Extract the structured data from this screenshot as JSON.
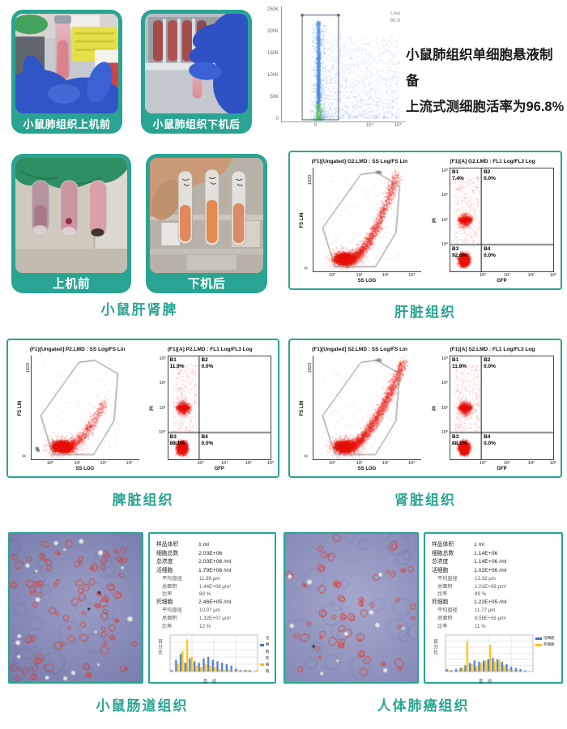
{
  "accent_color": "#2aa492",
  "headline": {
    "line1": "小鼠肺组织单细胞悬液制备",
    "line2": "上流式测细胞活率为96.8%"
  },
  "photos": {
    "lung_before": {
      "caption": "小鼠肺组织上机前"
    },
    "lung_after": {
      "caption": "小鼠肺组织下机后"
    },
    "organs_before": {
      "caption": "上机前"
    },
    "organs_after": {
      "caption": "下机后"
    },
    "group_caption": "小鼠肝肾脾"
  },
  "chart_data": {
    "lung": {
      "type": "scatter",
      "gate_label": "Live",
      "gate_value": "96.8",
      "yticks": [
        "250K",
        "200K",
        "150K",
        "100K",
        "50K",
        "0"
      ],
      "xticks": [
        "0",
        "10⁴",
        "10⁵"
      ],
      "point_style": "blue density scatter with viability gate",
      "seed": 5
    },
    "flow_panels": [
      {
        "caption": "肝脏组织",
        "left_title": "(F1)[Ungated] G2.LMD : SS Log/FS Lin",
        "left_xlabel": "SS LOG",
        "left_ylabel": "FS LIN",
        "left_yticks": [
          "1023",
          "0"
        ],
        "left_xticks": [
          "10⁰",
          "10¹",
          "10²",
          "10³"
        ],
        "right_title": "(F1)[A] G2.LMD : FL1 Log/FL3 Log",
        "right_xlabel": "GFP",
        "right_ylabel": "PI",
        "right_yticks": [
          "10⁰",
          "10¹",
          "10²",
          "10³"
        ],
        "right_xticks": [
          "10⁰",
          "10¹",
          "10²",
          "10³"
        ],
        "quads": [
          {
            "name": "B1",
            "value": "7.4%"
          },
          {
            "name": "B2",
            "value": "0.0%"
          },
          {
            "name": "B3",
            "value": "92.6%"
          },
          {
            "name": "B4",
            "value": "0.0%"
          }
        ],
        "shape": "liver",
        "seed": 11
      },
      {
        "caption": "脾脏组织",
        "left_title": "(F1)[Ungated] P2.LMD : SS Log/FS Lin",
        "left_xlabel": "SS LOG",
        "left_ylabel": "FS LIN",
        "left_yticks": [
          "1023",
          "0"
        ],
        "left_xticks": [
          "10⁰",
          "10¹",
          "10²",
          "10³"
        ],
        "right_title": "(F1)[A] P2.LMD : FL1 Log/FL3 Log",
        "right_xlabel": "GFP",
        "right_ylabel": "PI",
        "right_yticks": [
          "10⁰",
          "10¹",
          "10²",
          "10³"
        ],
        "right_xticks": [
          "10⁰",
          "10¹",
          "10²",
          "10³"
        ],
        "quads": [
          {
            "name": "B1",
            "value": "11.9%"
          },
          {
            "name": "B2",
            "value": "0.0%"
          },
          {
            "name": "B3",
            "value": "88.1%"
          },
          {
            "name": "B4",
            "value": "0.0%"
          }
        ],
        "shape": "spleen",
        "seed": 23
      },
      {
        "caption": "肾脏组织",
        "left_title": "(F1)[Ungated] S2.LMD : SS Log/FS Lin",
        "left_xlabel": "SS LOG",
        "left_ylabel": "FS LIN",
        "left_yticks": [
          "1023",
          "0"
        ],
        "left_xticks": [
          "10⁰",
          "10¹",
          "10²",
          "10³"
        ],
        "right_title": "(F1)[A] S2.LMD : FL1 Log/FL3 Log",
        "right_xlabel": "GFP",
        "right_ylabel": "PI",
        "right_yticks": [
          "10⁰",
          "10¹",
          "10²",
          "10³"
        ],
        "right_xticks": [
          "10⁰",
          "10¹",
          "10²",
          "10³"
        ],
        "quads": [
          {
            "name": "B1",
            "value": "11.9%"
          },
          {
            "name": "B2",
            "value": "0.0%"
          },
          {
            "name": "B3",
            "value": "88.1%"
          },
          {
            "name": "B4",
            "value": "0.0%"
          }
        ],
        "shape": "kidney",
        "seed": 37
      }
    ],
    "histograms": [
      {
        "type": "bar",
        "ylabel": "百分比",
        "xlabel": "直 径",
        "ylim": [
          0,
          25
        ],
        "yticks": [
          0,
          5,
          10,
          15,
          20,
          25
        ],
        "xticks": [
          3,
          8,
          13,
          18,
          23
        ],
        "categories": [
          4,
          5,
          6,
          7,
          8,
          9,
          10,
          11,
          12,
          13,
          14,
          15,
          16,
          17,
          18,
          19,
          20,
          21,
          22
        ],
        "series": [
          {
            "name": "活细胞",
            "color": "#4472c4",
            "values": [
              1,
              8,
              12,
              6,
              9,
              7,
              6,
              9,
              10,
              8,
              7,
              6,
              5,
              4,
              2,
              1,
              1,
              1,
              0
            ]
          },
          {
            "name": "死细胞",
            "color": "#ffc000",
            "values": [
              0,
              5,
              14,
              22,
              10,
              4,
              3,
              5,
              4,
              3,
              2,
              1,
              1,
              0,
              1,
              0,
              1,
              0,
              1
            ]
          }
        ]
      },
      {
        "type": "bar",
        "ylabel": "百分比",
        "xlabel": "直 径",
        "ylim": [
          0,
          30
        ],
        "yticks": [
          0,
          5,
          10,
          15,
          20,
          25,
          30
        ],
        "xticks": [
          3,
          8,
          13,
          18,
          23
        ],
        "categories": [
          4,
          5,
          6,
          7,
          8,
          9,
          10,
          11,
          12,
          13,
          14,
          15,
          16,
          17,
          18,
          19,
          20,
          21,
          22
        ],
        "series": [
          {
            "name": "活细胞",
            "color": "#4472c4",
            "values": [
              2,
              1,
              2,
              3,
              5,
              7,
              9,
              8,
              9,
              10,
              11,
              10,
              8,
              6,
              4,
              3,
              2,
              1,
              0
            ]
          },
          {
            "name": "死细胞",
            "color": "#ffc000",
            "values": [
              1,
              0,
              1,
              3,
              25,
              6,
              4,
              7,
              9,
              22,
              8,
              9,
              5,
              2,
              1,
              1,
              0,
              0,
              0
            ]
          }
        ]
      }
    ]
  },
  "micro_groups": [
    {
      "caption": "小鼠肠道组织",
      "stats": [
        {
          "label": "样品体积",
          "value": "1 ml",
          "indent": 0
        },
        {
          "label": "细胞总数",
          "value": "2.03E+06",
          "indent": 0
        },
        {
          "label": "总浓度",
          "value": "2.03E+06 /ml",
          "indent": 0
        },
        {
          "label": "活细胞",
          "value": "1.79E+06 /ml",
          "indent": 0
        },
        {
          "label": "平均直径",
          "value": "11.98 μm",
          "indent": 1
        },
        {
          "label": "总面积",
          "value": "1.44E+08 μm²",
          "indent": 1
        },
        {
          "label": "比率",
          "value": "88 %",
          "indent": 1
        },
        {
          "label": "死细胞",
          "value": "2.46E+05 /ml",
          "indent": 0
        },
        {
          "label": "平均直径",
          "value": "10.07 μm",
          "indent": 1
        },
        {
          "label": "总面积",
          "value": "1.32E+07 μm²",
          "indent": 1
        },
        {
          "label": "比率",
          "value": "12 %",
          "indent": 1
        }
      ],
      "image": {
        "cells": 80,
        "white": 17,
        "dark": 2,
        "seed": 7,
        "bg_center": "#989cc4",
        "bg_edge": "#777bab",
        "cell_color": "#e23b2e"
      }
    },
    {
      "caption": "人体肺癌组织",
      "stats": [
        {
          "label": "样品体积",
          "value": "1 ml",
          "indent": 0
        },
        {
          "label": "细胞总数",
          "value": "1.14E+06",
          "indent": 0
        },
        {
          "label": "总浓度",
          "value": "1.14E+06 /ml",
          "indent": 0
        },
        {
          "label": "活细胞",
          "value": "1.02E+06 /ml",
          "indent": 0
        },
        {
          "label": "平均直径",
          "value": "13.32 μm",
          "indent": 1
        },
        {
          "label": "总面积",
          "value": "1.01E+08 μm²",
          "indent": 1
        },
        {
          "label": "比率",
          "value": "89 %",
          "indent": 1
        },
        {
          "label": "死细胞",
          "value": "1.22E+05 /ml",
          "indent": 0
        },
        {
          "label": "平均直径",
          "value": "11.77 μm",
          "indent": 1
        },
        {
          "label": "总面积",
          "value": "9.56E+06 μm²",
          "indent": 1
        },
        {
          "label": "比率",
          "value": "11 %",
          "indent": 1
        }
      ],
      "image": {
        "cells": 52,
        "white": 11,
        "dark": 1,
        "seed": 41,
        "bg_center": "#a3a6cb",
        "bg_edge": "#8488b6",
        "cell_color": "#e23b2e"
      }
    }
  ]
}
